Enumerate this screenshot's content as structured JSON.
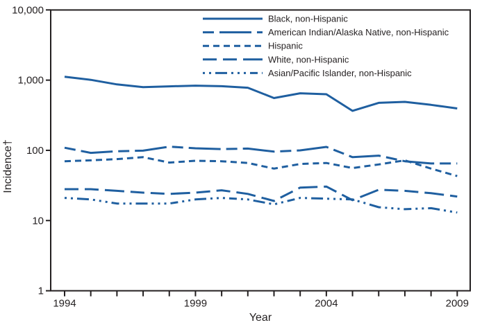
{
  "figure": {
    "background": "#ffffff",
    "frame_color": "#231f20",
    "text_color": "#231f20",
    "accent_line_color": "#1f5fa0"
  },
  "chart_data": {
    "type": "line",
    "title": "",
    "xlabel": "Year",
    "ylabel": "Incidence†",
    "y_scale": "log",
    "ylim": [
      1,
      10000
    ],
    "y_ticks": [
      {
        "value": 1,
        "label": "1"
      },
      {
        "value": 10,
        "label": "10"
      },
      {
        "value": 100,
        "label": "100"
      },
      {
        "value": 1000,
        "label": "1,000"
      },
      {
        "value": 10000,
        "label": "10,000"
      }
    ],
    "x": [
      1994,
      1995,
      1996,
      1997,
      1998,
      1999,
      2000,
      2001,
      2002,
      2003,
      2004,
      2005,
      2006,
      2007,
      2008,
      2009
    ],
    "x_labeled_ticks": [
      1994,
      1999,
      2004,
      2009
    ],
    "grid": false,
    "legend_position": "top-inside",
    "line_color": "#1f5fa0",
    "series": [
      {
        "name": "Black, non-Hispanic",
        "dash": "solid",
        "values": [
          1120,
          1010,
          870,
          795,
          815,
          835,
          820,
          780,
          555,
          650,
          630,
          365,
          475,
          490,
          445,
          395
        ]
      },
      {
        "name": "American Indian/Alaska Native, non-Hispanic",
        "dash": "dash-long-dash",
        "values": [
          109,
          92,
          97,
          99,
          113,
          107,
          104,
          106,
          96,
          100,
          112,
          80,
          84,
          70,
          65,
          65
        ]
      },
      {
        "name": "Hispanic",
        "dash": "short-dash",
        "values": [
          70,
          72,
          75,
          80,
          67,
          71,
          70,
          66,
          55,
          64,
          66,
          56,
          63,
          72,
          55,
          43
        ]
      },
      {
        "name": "White, non-Hispanic",
        "dash": "long-dash-triplet",
        "values": [
          28,
          28,
          26.5,
          25,
          24,
          25,
          27,
          24,
          19,
          29.5,
          30.5,
          19.5,
          27.5,
          26.5,
          24.5,
          22
        ]
      },
      {
        "name": "Asian/Pacific Islander, non-Hispanic",
        "dash": "dash-dot-dot",
        "values": [
          21,
          20,
          17.5,
          17.5,
          17.5,
          20,
          21,
          20,
          17,
          21,
          20.5,
          20,
          15.5,
          14.5,
          15,
          13
        ]
      }
    ]
  }
}
